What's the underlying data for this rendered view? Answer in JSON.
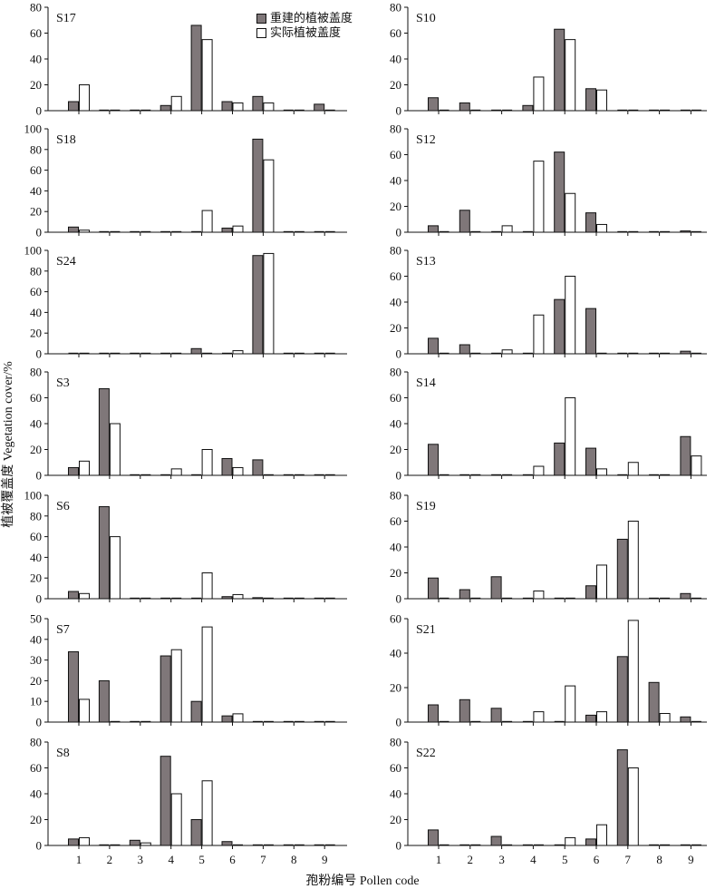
{
  "legend": {
    "reconstructed": "重建的植被盖度",
    "actual": "实际植被盖度"
  },
  "ylabel": "植被覆盖度 Vegetation cover/%",
  "xlabel": "孢粉编号 Pollen code",
  "colors": {
    "reconstructed": "#7f7779",
    "actual": "#ffffff",
    "axis": "#111111"
  },
  "chart_data": [
    {
      "type": "bar",
      "panel": "S17",
      "categories": [
        "1",
        "2",
        "3",
        "4",
        "5",
        "6",
        "7",
        "8",
        "9"
      ],
      "ylim": [
        0,
        80
      ],
      "yticks": [
        0,
        20,
        40,
        60,
        80
      ],
      "series": [
        {
          "name": "重建的植被盖度",
          "values": [
            7,
            0,
            0,
            4,
            66,
            7,
            11,
            0,
            5
          ]
        },
        {
          "name": "实际植被盖度",
          "values": [
            20,
            0,
            0,
            11,
            55,
            6,
            6,
            0,
            0
          ]
        }
      ]
    },
    {
      "type": "bar",
      "panel": "S10",
      "categories": [
        "1",
        "2",
        "3",
        "4",
        "5",
        "6",
        "7",
        "8",
        "9"
      ],
      "ylim": [
        0,
        80
      ],
      "yticks": [
        0,
        20,
        40,
        60,
        80
      ],
      "series": [
        {
          "name": "重建的植被盖度",
          "values": [
            10,
            6,
            0,
            4,
            63,
            17,
            0,
            0,
            0
          ]
        },
        {
          "name": "实际植被盖度",
          "values": [
            0,
            0,
            0,
            26,
            55,
            16,
            0,
            0,
            0
          ]
        }
      ]
    },
    {
      "type": "bar",
      "panel": "S18",
      "categories": [
        "1",
        "2",
        "3",
        "4",
        "5",
        "6",
        "7",
        "8",
        "9"
      ],
      "ylim": [
        0,
        100
      ],
      "yticks": [
        0,
        20,
        40,
        60,
        80,
        100
      ],
      "series": [
        {
          "name": "重建的植被盖度",
          "values": [
            5,
            0,
            0,
            0,
            0,
            4,
            90,
            0,
            0
          ]
        },
        {
          "name": "实际植被盖度",
          "values": [
            2,
            0,
            0,
            0,
            21,
            6,
            70,
            0,
            0
          ]
        }
      ]
    },
    {
      "type": "bar",
      "panel": "S12",
      "categories": [
        "1",
        "2",
        "3",
        "4",
        "5",
        "6",
        "7",
        "8",
        "9"
      ],
      "ylim": [
        0,
        80
      ],
      "yticks": [
        0,
        20,
        40,
        60,
        80
      ],
      "series": [
        {
          "name": "重建的植被盖度",
          "values": [
            5,
            17,
            0,
            0,
            62,
            15,
            0,
            0,
            1
          ]
        },
        {
          "name": "实际植被盖度",
          "values": [
            0,
            0,
            5,
            55,
            30,
            6,
            0,
            0,
            0
          ]
        }
      ]
    },
    {
      "type": "bar",
      "panel": "S24",
      "categories": [
        "1",
        "2",
        "3",
        "4",
        "5",
        "6",
        "7",
        "8",
        "9"
      ],
      "ylim": [
        0,
        100
      ],
      "yticks": [
        0,
        20,
        40,
        60,
        80,
        100
      ],
      "series": [
        {
          "name": "重建的植被盖度",
          "values": [
            0,
            0,
            0,
            0,
            5,
            0,
            95,
            0,
            0
          ]
        },
        {
          "name": "实际植被盖度",
          "values": [
            0,
            0,
            0,
            0,
            0,
            3,
            97,
            0,
            0
          ]
        }
      ]
    },
    {
      "type": "bar",
      "panel": "S13",
      "categories": [
        "1",
        "2",
        "3",
        "4",
        "5",
        "6",
        "7",
        "8",
        "9"
      ],
      "ylim": [
        0,
        80
      ],
      "yticks": [
        0,
        20,
        40,
        60,
        80
      ],
      "series": [
        {
          "name": "重建的植被盖度",
          "values": [
            12,
            7,
            0,
            0,
            42,
            35,
            0,
            0,
            2
          ]
        },
        {
          "name": "实际植被盖度",
          "values": [
            0,
            0,
            3,
            30,
            60,
            0,
            0,
            0,
            0
          ]
        }
      ]
    },
    {
      "type": "bar",
      "panel": "S3",
      "categories": [
        "1",
        "2",
        "3",
        "4",
        "5",
        "6",
        "7",
        "8",
        "9"
      ],
      "ylim": [
        0,
        80
      ],
      "yticks": [
        0,
        20,
        40,
        60,
        80
      ],
      "series": [
        {
          "name": "重建的植被盖度",
          "values": [
            6,
            67,
            0,
            0,
            0,
            13,
            12,
            0,
            0
          ]
        },
        {
          "name": "实际植被盖度",
          "values": [
            11,
            40,
            0,
            5,
            20,
            6,
            0,
            0,
            0
          ]
        }
      ]
    },
    {
      "type": "bar",
      "panel": "S14",
      "categories": [
        "1",
        "2",
        "3",
        "4",
        "5",
        "6",
        "7",
        "8",
        "9"
      ],
      "ylim": [
        0,
        80
      ],
      "yticks": [
        0,
        20,
        40,
        60,
        80
      ],
      "series": [
        {
          "name": "重建的植被盖度",
          "values": [
            24,
            0,
            0,
            0,
            25,
            21,
            0,
            0,
            30
          ]
        },
        {
          "name": "实际植被盖度",
          "values": [
            0,
            0,
            0,
            7,
            60,
            5,
            10,
            0,
            15
          ]
        }
      ]
    },
    {
      "type": "bar",
      "panel": "S6",
      "categories": [
        "1",
        "2",
        "3",
        "4",
        "5",
        "6",
        "7",
        "8",
        "9"
      ],
      "ylim": [
        0,
        100
      ],
      "yticks": [
        0,
        20,
        40,
        60,
        80,
        100
      ],
      "series": [
        {
          "name": "重建的植被盖度",
          "values": [
            7,
            89,
            0,
            0,
            0,
            2,
            1,
            0,
            0
          ]
        },
        {
          "name": "实际植被盖度",
          "values": [
            5,
            60,
            0,
            0,
            25,
            4,
            0,
            0,
            0
          ]
        }
      ]
    },
    {
      "type": "bar",
      "panel": "S19",
      "categories": [
        "1",
        "2",
        "3",
        "4",
        "5",
        "6",
        "7",
        "8",
        "9"
      ],
      "ylim": [
        0,
        80
      ],
      "yticks": [
        0,
        20,
        40,
        60,
        80
      ],
      "series": [
        {
          "name": "重建的植被盖度",
          "values": [
            16,
            7,
            17,
            0,
            0,
            10,
            46,
            0,
            4
          ]
        },
        {
          "name": "实际植被盖度",
          "values": [
            0,
            0,
            0,
            6,
            0,
            26,
            60,
            0,
            0
          ]
        }
      ]
    },
    {
      "type": "bar",
      "panel": "S7",
      "categories": [
        "1",
        "2",
        "3",
        "4",
        "5",
        "6",
        "7",
        "8",
        "9"
      ],
      "ylim": [
        0,
        50
      ],
      "yticks": [
        0,
        10,
        20,
        30,
        40,
        50
      ],
      "series": [
        {
          "name": "重建的植被盖度",
          "values": [
            34,
            20,
            0,
            32,
            10,
            3,
            0,
            0,
            0
          ]
        },
        {
          "name": "实际植被盖度",
          "values": [
            11,
            0,
            0,
            35,
            46,
            4,
            0,
            0,
            0
          ]
        }
      ]
    },
    {
      "type": "bar",
      "panel": "S21",
      "categories": [
        "1",
        "2",
        "3",
        "4",
        "5",
        "6",
        "7",
        "8",
        "9"
      ],
      "ylim": [
        0,
        60
      ],
      "yticks": [
        0,
        20,
        40,
        60
      ],
      "series": [
        {
          "name": "重建的植被盖度",
          "values": [
            10,
            13,
            8,
            0,
            0,
            4,
            38,
            23,
            3
          ]
        },
        {
          "name": "实际植被盖度",
          "values": [
            0,
            0,
            0,
            6,
            21,
            6,
            59,
            5,
            0
          ]
        }
      ]
    },
    {
      "type": "bar",
      "panel": "S8",
      "categories": [
        "1",
        "2",
        "3",
        "4",
        "5",
        "6",
        "7",
        "8",
        "9"
      ],
      "ylim": [
        0,
        80
      ],
      "yticks": [
        0,
        20,
        40,
        60,
        80
      ],
      "series": [
        {
          "name": "重建的植被盖度",
          "values": [
            5,
            0,
            4,
            69,
            20,
            3,
            0,
            0,
            0
          ]
        },
        {
          "name": "实际植被盖度",
          "values": [
            6,
            0,
            2,
            40,
            50,
            0,
            0,
            0,
            0
          ]
        }
      ]
    },
    {
      "type": "bar",
      "panel": "S22",
      "categories": [
        "1",
        "2",
        "3",
        "4",
        "5",
        "6",
        "7",
        "8",
        "9"
      ],
      "ylim": [
        0,
        80
      ],
      "yticks": [
        0,
        20,
        40,
        60,
        80
      ],
      "series": [
        {
          "name": "重建的植被盖度",
          "values": [
            12,
            0,
            7,
            0,
            0,
            5,
            74,
            0,
            0
          ]
        },
        {
          "name": "实际植被盖度",
          "values": [
            0,
            0,
            0,
            0,
            6,
            16,
            60,
            0,
            0
          ]
        }
      ]
    }
  ]
}
